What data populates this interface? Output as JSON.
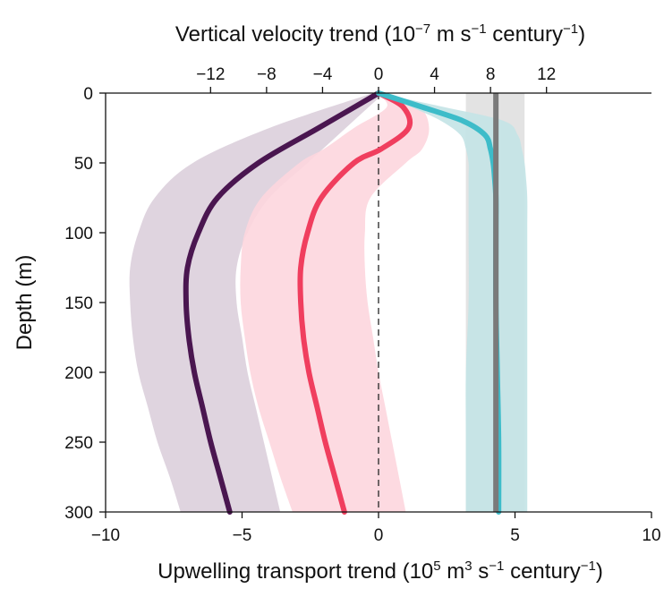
{
  "chart_data": {
    "type": "line",
    "orientation": "vertical-profile",
    "top_axis": {
      "title_parts": [
        "Vertical velocity trend (10",
        "−7",
        " m s",
        "−1",
        " century",
        "−1",
        ")"
      ],
      "range": [
        -19.5,
        19.5
      ],
      "ticks": [
        -12,
        -8,
        -4,
        0,
        4,
        8,
        12
      ],
      "tick_labels": [
        "−12",
        "−8",
        "−4",
        "0",
        "4",
        "8",
        "12"
      ]
    },
    "bottom_axis": {
      "title_parts": [
        "Upwelling transport trend (10",
        "5",
        " m",
        "3",
        " s",
        "−1",
        " century",
        "−1",
        ")"
      ],
      "range": [
        -10,
        10
      ],
      "ticks": [
        -10,
        -5,
        0,
        5,
        10
      ],
      "tick_labels": [
        "−10",
        "−5",
        "0",
        "5",
        "10"
      ]
    },
    "y_axis": {
      "title": "Depth (m)",
      "range": [
        0,
        300
      ],
      "inverted": true,
      "ticks": [
        0,
        50,
        100,
        150,
        200,
        250,
        300
      ],
      "tick_labels": [
        "0",
        "50",
        "100",
        "150",
        "200",
        "250",
        "300"
      ]
    },
    "zero_line": {
      "x": 0,
      "style": "dashed"
    },
    "series": [
      {
        "color": "#4a1650",
        "band_color": "#dccfdc",
        "depth": [
          0,
          25,
          50,
          75,
          100,
          125,
          150,
          175,
          200,
          225,
          250,
          275,
          300
        ],
        "values": [
          0,
          -2.2,
          -4.4,
          -5.9,
          -6.6,
          -7.0,
          -7.05,
          -6.95,
          -6.75,
          -6.45,
          -6.15,
          -5.8,
          -5.45
        ],
        "lower": [
          -0.2,
          -4.0,
          -6.8,
          -8.2,
          -8.8,
          -9.1,
          -9.1,
          -9.0,
          -8.8,
          -8.45,
          -8.1,
          -7.65,
          -7.25
        ],
        "upper": [
          0.2,
          -1.2,
          -2.6,
          -4.0,
          -4.8,
          -5.2,
          -5.2,
          -5.0,
          -4.8,
          -4.5,
          -4.2,
          -3.9,
          -3.6
        ]
      },
      {
        "color": "#f03e5e",
        "band_color": "#fdd6de",
        "depth": [
          0,
          10,
          25,
          40,
          50,
          75,
          100,
          125,
          150,
          175,
          200,
          225,
          250,
          275,
          300
        ],
        "values": [
          0,
          0.9,
          1.1,
          0.1,
          -0.9,
          -2.1,
          -2.6,
          -2.85,
          -2.85,
          -2.75,
          -2.55,
          -2.25,
          -1.95,
          -1.6,
          -1.25
        ],
        "lower": [
          -0.1,
          0.3,
          -0.9,
          -2.0,
          -2.9,
          -4.3,
          -4.9,
          -5.05,
          -5.05,
          -4.9,
          -4.7,
          -4.4,
          -4.0,
          -3.6,
          -3.15
        ],
        "upper": [
          0.2,
          1.5,
          1.85,
          1.6,
          1.0,
          -0.3,
          -0.5,
          -0.5,
          -0.4,
          -0.2,
          0.0,
          0.25,
          0.5,
          0.75,
          1.0
        ]
      },
      {
        "color": "#3dbcc9",
        "band_color": "#c3e3e6",
        "depth": [
          0,
          10,
          20,
          30,
          40,
          50,
          60,
          75,
          100,
          150,
          200,
          250,
          300
        ],
        "values": [
          0,
          1.6,
          3.1,
          3.9,
          4.1,
          4.2,
          4.25,
          4.3,
          4.3,
          4.3,
          4.35,
          4.4,
          4.4
        ],
        "lower": [
          0,
          1.2,
          2.3,
          3.0,
          3.2,
          3.3,
          3.3,
          3.3,
          3.3,
          3.3,
          3.2,
          3.2,
          3.2
        ],
        "upper": [
          0,
          2.4,
          4.6,
          5.1,
          5.25,
          5.35,
          5.4,
          5.45,
          5.45,
          5.45,
          5.45,
          5.45,
          5.45
        ]
      },
      {
        "color": "#7a7a7a",
        "band_color": "#e3e3e3",
        "value": 4.3,
        "lower": 3.2,
        "upper": 5.35,
        "depth": [
          0,
          300
        ]
      }
    ]
  }
}
